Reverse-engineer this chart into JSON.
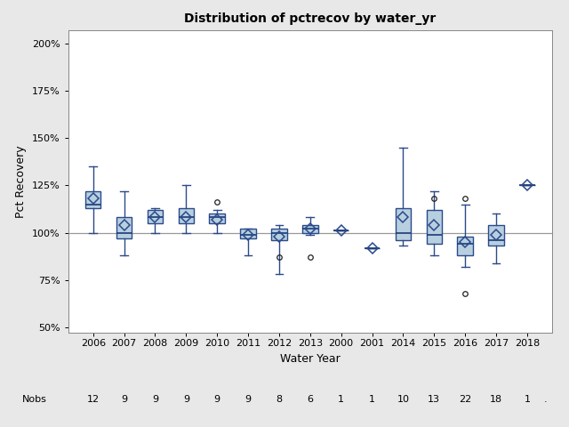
{
  "title": "Distribution of pctrecov by water_yr",
  "xlabel": "Water Year",
  "ylabel": "Pct Recovery",
  "years": [
    "2006",
    "2007",
    "2008",
    "2009",
    "2010",
    "2011",
    "2012",
    "2013",
    "2000",
    "2001",
    "2014",
    "2015",
    "2016",
    "2017",
    "2018"
  ],
  "nobs": [
    12,
    9,
    9,
    9,
    9,
    9,
    8,
    6,
    1,
    1,
    10,
    13,
    22,
    18,
    1
  ],
  "boxes": [
    {
      "q1": 113,
      "median": 115,
      "q3": 122,
      "mean": 118,
      "whislo": 100,
      "whishi": 135,
      "fliers": []
    },
    {
      "q1": 97,
      "median": 100,
      "q3": 108,
      "mean": 104,
      "whislo": 88,
      "whishi": 122,
      "fliers": []
    },
    {
      "q1": 105,
      "median": 108,
      "q3": 112,
      "mean": 108,
      "whislo": 100,
      "whishi": 113,
      "fliers": []
    },
    {
      "q1": 105,
      "median": 108,
      "q3": 113,
      "mean": 108,
      "whislo": 100,
      "whishi": 125,
      "fliers": []
    },
    {
      "q1": 105,
      "median": 108,
      "q3": 110,
      "mean": 107,
      "whislo": 100,
      "whishi": 112,
      "fliers": [
        116
      ]
    },
    {
      "q1": 97,
      "median": 99,
      "q3": 102,
      "mean": 99,
      "whislo": 88,
      "whishi": 102,
      "fliers": []
    },
    {
      "q1": 96,
      "median": 100,
      "q3": 102,
      "mean": 98,
      "whislo": 78,
      "whishi": 104,
      "fliers": [
        87
      ]
    },
    {
      "q1": 100,
      "median": 102,
      "q3": 104,
      "mean": 102,
      "whislo": 99,
      "whishi": 108,
      "fliers": [
        87
      ]
    },
    {
      "q1": 101,
      "median": 101,
      "q3": 101,
      "mean": 101,
      "whislo": 101,
      "whishi": 101,
      "fliers": []
    },
    {
      "q1": 92,
      "median": 92,
      "q3": 92,
      "mean": 92,
      "whislo": 92,
      "whishi": 92,
      "fliers": []
    },
    {
      "q1": 96,
      "median": 100,
      "q3": 113,
      "mean": 108,
      "whislo": 93,
      "whishi": 145,
      "fliers": []
    },
    {
      "q1": 94,
      "median": 99,
      "q3": 112,
      "mean": 104,
      "whislo": 88,
      "whishi": 122,
      "fliers": [
        118
      ]
    },
    {
      "q1": 88,
      "median": 94,
      "q3": 98,
      "mean": 95,
      "whislo": 82,
      "whishi": 115,
      "fliers": [
        68,
        118
      ]
    },
    {
      "q1": 93,
      "median": 96,
      "q3": 104,
      "mean": 99,
      "whislo": 84,
      "whishi": 110,
      "fliers": []
    },
    {
      "q1": 125,
      "median": 125,
      "q3": 125,
      "mean": 125,
      "whislo": 125,
      "whishi": 125,
      "fliers": []
    }
  ],
  "ylim": [
    47,
    207
  ],
  "yticks": [
    50,
    75,
    100,
    125,
    150,
    175,
    200
  ],
  "ytick_labels": [
    "50%",
    "75%",
    "100%",
    "125%",
    "150%",
    "175%",
    "200%"
  ],
  "box_facecolor": "#b8cfe0",
  "box_edgecolor": "#2a4a8a",
  "median_color": "#1a3a7a",
  "whisker_color": "#2a4a8a",
  "flier_color": "#222222",
  "mean_marker_color": "#2a4a8a",
  "hline_y": 100,
  "hline_color": "#999999",
  "background_color": "#e8e8e8",
  "plot_bg_color": "#ffffff"
}
